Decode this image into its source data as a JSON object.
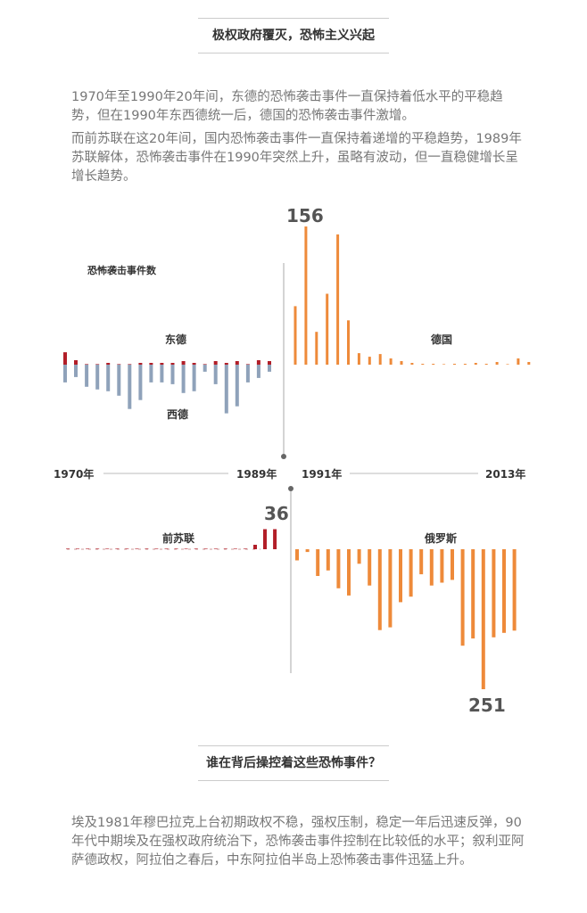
{
  "header": {
    "title": "极权政府覆灭，恐怖主义兴起"
  },
  "intro": {
    "p1": "1970年至1990年20年间，东德的恐怖袭击事件一直保持着低水平的平稳趋势，但在1990年东西德统一后，德国的恐怖袭击事件激增。",
    "p2": "而前苏联在这20年间，国内恐怖袭击事件一直保持着递增的平稳趋势，1989年苏联解体，恐怖袭击事件在1990年突然上升，虽略有波动，但一直稳健增长呈增长趋势。"
  },
  "section2": {
    "title": "谁在背后操控着这些恐怖事件？"
  },
  "outro": {
    "p1": "埃及1981年穆巴拉克上台初期政权不稳，强权压制，稳定一年后迅速反弹，90年代中期埃及在强权政府统治下，恐怖袭击事件控制在比较低的水平；叙利亚阿萨德政权，阿拉伯之春后，中东阿拉伯半岛上恐怖袭击事件迅猛上升。"
  },
  "colors": {
    "east_germany": "#b21e28",
    "west_germany": "#8fa2ba",
    "germany": "#ee8a3a",
    "soviet": "#b21e28",
    "russia": "#ee8a3a",
    "axis": "#aaaaaa"
  },
  "chart_data": [
    {
      "type": "bar",
      "ylabel": "恐怖袭击事件数",
      "peak_label": "156",
      "axis_labels": {
        "start": "1970年",
        "split_left": "1989年",
        "split_right": "1991年",
        "end": "2013年"
      },
      "series": [
        {
          "name": "东德",
          "direction": "up",
          "x": [
            1970,
            1971,
            1972,
            1973,
            1974,
            1975,
            1976,
            1977,
            1978,
            1979,
            1980,
            1981,
            1982,
            1983,
            1984,
            1985,
            1986,
            1987,
            1988,
            1989
          ],
          "values": [
            14,
            5,
            0,
            0,
            2,
            0,
            0,
            2,
            2,
            2,
            2,
            4,
            2,
            0,
            4,
            2,
            4,
            0,
            5,
            4
          ]
        },
        {
          "name": "西德",
          "direction": "down",
          "x": [
            1970,
            1971,
            1972,
            1973,
            1974,
            1975,
            1976,
            1977,
            1978,
            1979,
            1980,
            1981,
            1982,
            1983,
            1984,
            1985,
            1986,
            1987,
            1988,
            1989
          ],
          "values": [
            20,
            14,
            25,
            28,
            30,
            35,
            50,
            40,
            20,
            20,
            22,
            32,
            30,
            8,
            22,
            55,
            47,
            20,
            15,
            8
          ]
        },
        {
          "name": "德国",
          "direction": "up",
          "x": [
            1991,
            1992,
            1993,
            1994,
            1995,
            1996,
            1997,
            1998,
            1999,
            2000,
            2001,
            2002,
            2003,
            2004,
            2005,
            2006,
            2007,
            2008,
            2009,
            2010,
            2011,
            2012,
            2013
          ],
          "values": [
            66,
            156,
            37,
            80,
            147,
            50,
            13,
            9,
            12,
            7,
            4,
            2,
            1,
            1,
            0,
            1,
            1,
            2,
            1,
            3,
            0,
            7,
            3
          ]
        }
      ]
    },
    {
      "type": "bar",
      "peak_label_top": "36",
      "peak_label_bottom": "251",
      "series": [
        {
          "name": "前苏联",
          "direction": "up",
          "x": [
            1970,
            1971,
            1972,
            1973,
            1974,
            1975,
            1976,
            1977,
            1978,
            1979,
            1980,
            1981,
            1982,
            1983,
            1984,
            1985,
            1986,
            1987,
            1988,
            1989,
            1990,
            1991
          ],
          "values": [
            0,
            0,
            0,
            0,
            0,
            0,
            0,
            0,
            0,
            0,
            0,
            0,
            0,
            0,
            0,
            0,
            0,
            0,
            0,
            8,
            36,
            36
          ]
        },
        {
          "name": "俄罗斯",
          "direction": "down",
          "x": [
            1992,
            1993,
            1994,
            1995,
            1996,
            1997,
            1998,
            1999,
            2000,
            2001,
            2002,
            2003,
            2004,
            2005,
            2006,
            2007,
            2008,
            2009,
            2010,
            2011,
            2012,
            2013
          ],
          "values": [
            20,
            5,
            48,
            38,
            70,
            83,
            26,
            65,
            145,
            140,
            95,
            85,
            45,
            65,
            60,
            55,
            173,
            160,
            251,
            158,
            150,
            146
          ]
        }
      ]
    }
  ]
}
